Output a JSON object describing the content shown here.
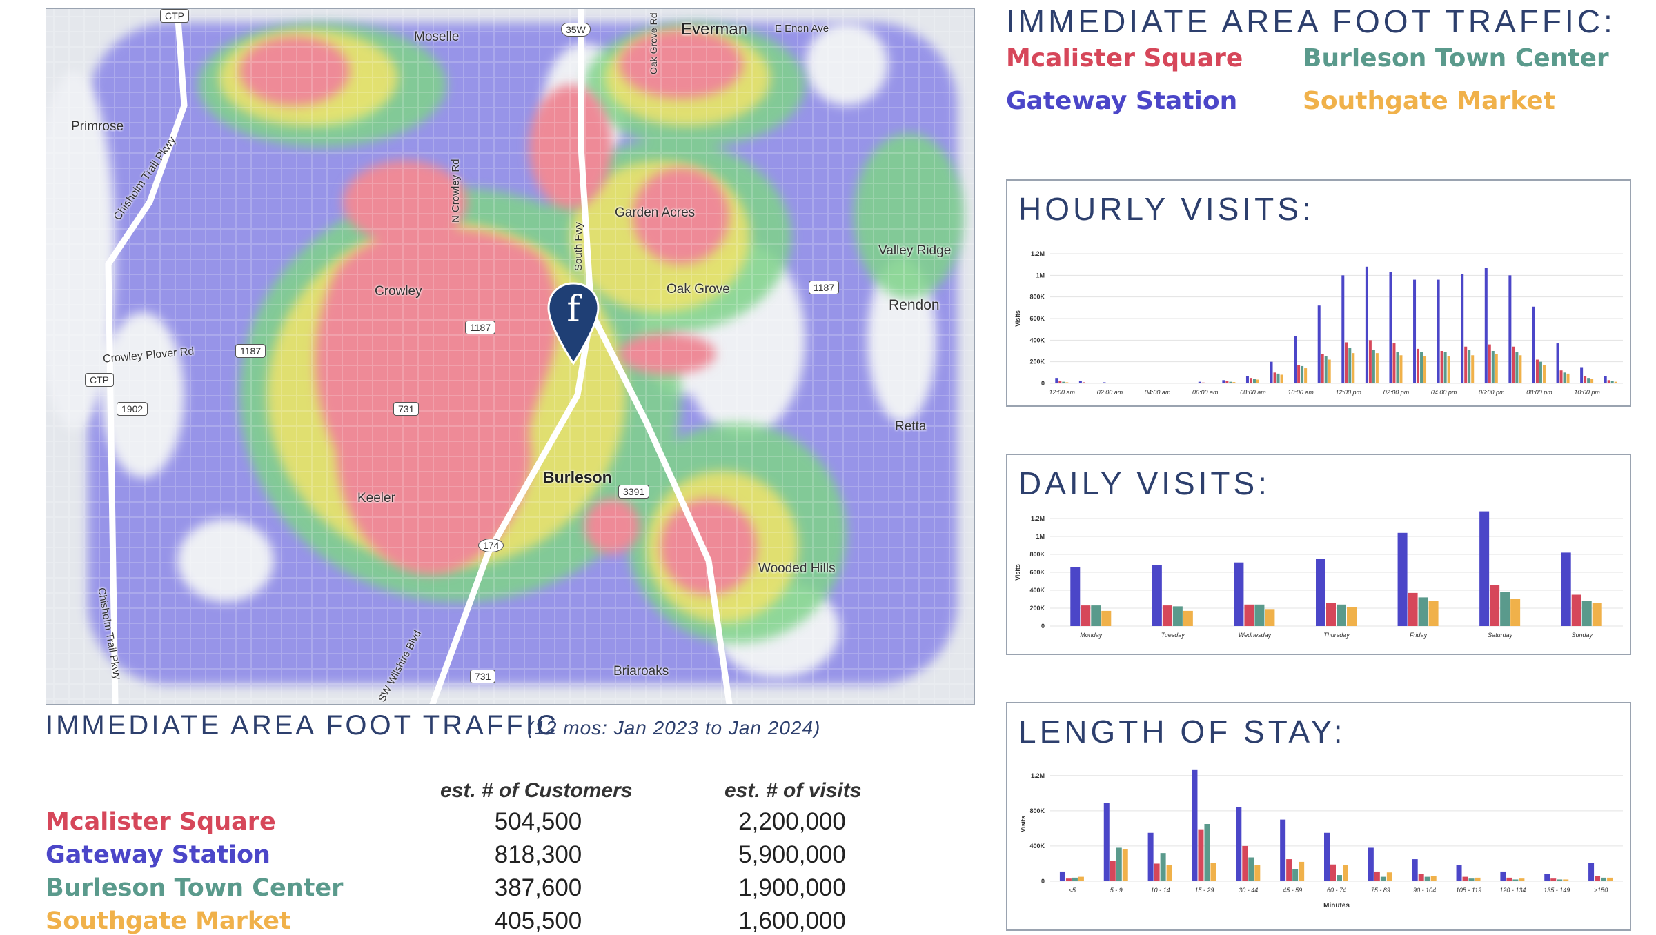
{
  "colors": {
    "mcalister": "#d6475a",
    "gateway": "#4b46c8",
    "burleson": "#5a9a8c",
    "southgate": "#f0b14a",
    "title": "#2d3f6d"
  },
  "map": {
    "labels": {
      "moselle": "Moselle",
      "everman": "Everman",
      "enon": "E Enon Ave",
      "primrose": "Primrose",
      "chisholm_top": "Chisholm Trail Pkwy",
      "garden_acres": "Garden Acres",
      "valley_ridge": "Valley Ridge",
      "crowley": "Crowley",
      "oak_grove": "Oak Grove",
      "rendon": "Rendon",
      "crowley_plover": "Crowley Plover Rd",
      "retta": "Retta",
      "burleson": "Burleson",
      "keeler": "Keeler",
      "wooded_hills": "Wooded Hills",
      "chisholm_bottom": "Chisholm Trail Pkwy",
      "wilshire": "SW Wilshire Blvd",
      "briaroaks": "Briaroaks",
      "n_crowley_rd": "N Crowley Rd",
      "south_fwy": "South Fwy",
      "oak_grove_rd": "Oak Grove Rd"
    },
    "shields": {
      "ctp1": "CTP",
      "i35w": "35W",
      "r1187a": "1187",
      "r1187b": "1187",
      "r1187c": "1187",
      "ctp2": "CTP",
      "r1902": "1902",
      "r731a": "731",
      "r3391": "3391",
      "r174": "174",
      "r731b": "731"
    },
    "pin_letter": "f",
    "pin_icon": "location-pin-icon"
  },
  "map_caption": {
    "title": "IMMEDIATE AREA FOOT TRAFFIC",
    "period": "(12 mos: Jan 2023 to Jan 2024)"
  },
  "table": {
    "col_customers": "est. # of Customers",
    "col_visits": "est. # of visits",
    "rows": [
      {
        "name": "Mcalister Square",
        "customers": "504,500",
        "visits": "2,200,000"
      },
      {
        "name": "Gateway Station",
        "customers": "818,300",
        "visits": "5,900,000"
      },
      {
        "name": "Burleson Town Center",
        "customers": "387,600",
        "visits": "1,900,000"
      },
      {
        "name": "Southgate Market",
        "customers": "405,500",
        "visits": "1,600,000"
      }
    ]
  },
  "legend": {
    "title": "IMMEDIATE AREA FOOT TRAFFIC:",
    "items": [
      "Mcalister Square",
      "Burleson Town Center",
      "Gateway Station",
      "Southgate Market"
    ]
  },
  "panels": {
    "hourly_title": "HOURLY VISITS:",
    "daily_title": "DAILY VISITS:",
    "stay_title": "LENGTH OF STAY:"
  },
  "chart_data": [
    {
      "type": "bar",
      "title": "HOURLY VISITS:",
      "ylabel": "Visits",
      "xlabel": "",
      "ylim": [
        0,
        1200000
      ],
      "yticks": [
        0,
        200000,
        400000,
        600000,
        800000,
        1000000,
        1200000
      ],
      "ytick_labels": [
        "0",
        "200K",
        "400K",
        "600K",
        "800K",
        "1M",
        "1.2M"
      ],
      "xtick_labels": [
        "12:00 am",
        "02:00 am",
        "04:00 am",
        "06:00 am",
        "08:00 am",
        "10:00 am",
        "12:00 pm",
        "02:00 pm",
        "04:00 pm",
        "06:00 pm",
        "08:00 pm",
        "10:00 pm"
      ],
      "categories": [
        "0",
        "1",
        "2",
        "3",
        "4",
        "5",
        "6",
        "7",
        "8",
        "9",
        "10",
        "11",
        "12",
        "13",
        "14",
        "15",
        "16",
        "17",
        "18",
        "19",
        "20",
        "21",
        "22",
        "23"
      ],
      "series": [
        {
          "name": "Gateway Station",
          "values": [
            50000,
            25000,
            10000,
            0,
            0,
            0,
            15000,
            30000,
            70000,
            200000,
            440000,
            720000,
            1000000,
            1080000,
            1030000,
            960000,
            960000,
            1010000,
            1070000,
            1000000,
            710000,
            370000,
            150000,
            70000
          ]
        },
        {
          "name": "Mcalister Square",
          "values": [
            25000,
            10000,
            5000,
            0,
            0,
            0,
            8000,
            20000,
            50000,
            100000,
            170000,
            270000,
            380000,
            400000,
            370000,
            320000,
            300000,
            340000,
            360000,
            340000,
            220000,
            120000,
            70000,
            30000
          ]
        },
        {
          "name": "Burleson Town Center",
          "values": [
            15000,
            6000,
            3000,
            0,
            0,
            0,
            6000,
            15000,
            40000,
            90000,
            160000,
            250000,
            330000,
            310000,
            290000,
            290000,
            290000,
            310000,
            300000,
            290000,
            200000,
            100000,
            50000,
            20000
          ]
        },
        {
          "name": "Southgate Market",
          "values": [
            10000,
            5000,
            2000,
            0,
            0,
            0,
            5000,
            12000,
            35000,
            80000,
            140000,
            220000,
            280000,
            280000,
            260000,
            250000,
            250000,
            260000,
            270000,
            260000,
            170000,
            90000,
            40000,
            15000
          ]
        }
      ]
    },
    {
      "type": "bar",
      "title": "DAILY VISITS:",
      "ylabel": "Visits",
      "xlabel": "",
      "ylim": [
        0,
        1200000
      ],
      "yticks": [
        0,
        200000,
        400000,
        600000,
        800000,
        1000000,
        1200000
      ],
      "ytick_labels": [
        "0",
        "200K",
        "400K",
        "600K",
        "800K",
        "1M",
        "1.2M"
      ],
      "categories": [
        "Monday",
        "Tuesday",
        "Wednesday",
        "Thursday",
        "Friday",
        "Saturday",
        "Sunday"
      ],
      "series": [
        {
          "name": "Gateway Station",
          "values": [
            660000,
            680000,
            710000,
            750000,
            1040000,
            1280000,
            820000
          ]
        },
        {
          "name": "Mcalister Square",
          "values": [
            230000,
            230000,
            240000,
            260000,
            370000,
            460000,
            350000
          ]
        },
        {
          "name": "Burleson Town Center",
          "values": [
            230000,
            220000,
            240000,
            240000,
            320000,
            380000,
            280000
          ]
        },
        {
          "name": "Southgate Market",
          "values": [
            170000,
            170000,
            190000,
            210000,
            280000,
            300000,
            260000
          ]
        }
      ]
    },
    {
      "type": "bar",
      "title": "LENGTH OF STAY:",
      "ylabel": "Visits",
      "xlabel": "Minutes",
      "ylim": [
        0,
        1300000
      ],
      "yticks": [
        0,
        400000,
        800000,
        1200000
      ],
      "ytick_labels": [
        "0",
        "400K",
        "800K",
        "1.2M"
      ],
      "categories": [
        "<5",
        "5 - 9",
        "10 - 14",
        "15 - 29",
        "30 - 44",
        "45 - 59",
        "60 - 74",
        "75 - 89",
        "90 - 104",
        "105 - 119",
        "120 - 134",
        "135 - 149",
        ">150"
      ],
      "series": [
        {
          "name": "Gateway Station",
          "values": [
            110000,
            890000,
            550000,
            1270000,
            840000,
            700000,
            550000,
            380000,
            250000,
            180000,
            110000,
            80000,
            210000
          ]
        },
        {
          "name": "Mcalister Square",
          "values": [
            30000,
            230000,
            200000,
            590000,
            400000,
            250000,
            190000,
            110000,
            80000,
            50000,
            40000,
            30000,
            60000
          ]
        },
        {
          "name": "Burleson Town Center",
          "values": [
            40000,
            380000,
            320000,
            650000,
            270000,
            140000,
            70000,
            50000,
            50000,
            30000,
            20000,
            20000,
            40000
          ]
        },
        {
          "name": "Southgate Market",
          "values": [
            50000,
            360000,
            180000,
            210000,
            180000,
            220000,
            180000,
            100000,
            60000,
            40000,
            30000,
            20000,
            40000
          ]
        }
      ]
    }
  ]
}
